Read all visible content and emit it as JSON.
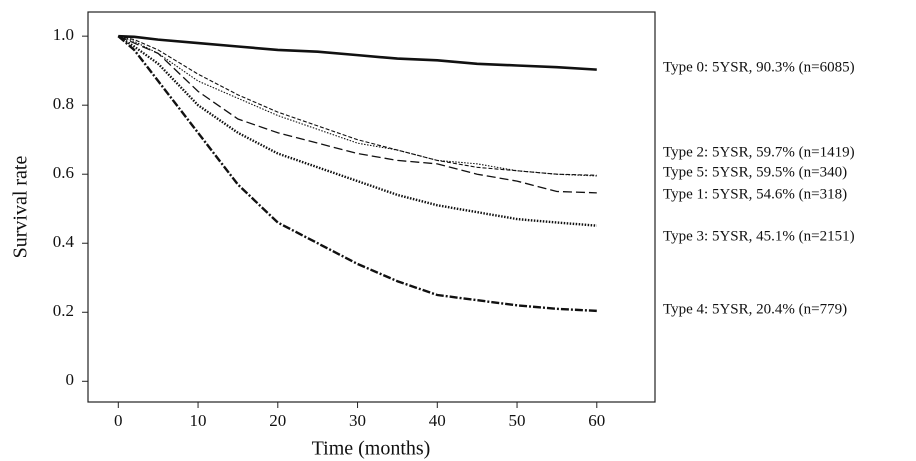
{
  "chart_data": {
    "type": "line",
    "x_label": "Time (months)",
    "y_label": "Survival rate",
    "xlim": [
      -3.8,
      67.3
    ],
    "ylim": [
      -0.06,
      1.07
    ],
    "xticks": [
      0,
      10,
      20,
      30,
      40,
      50,
      60
    ],
    "yticks": [
      0,
      0.2,
      0.4,
      0.6,
      0.8,
      {
        "value": 1,
        "label": "1.0"
      }
    ],
    "x": [
      0,
      2,
      5,
      10,
      15,
      20,
      25,
      30,
      35,
      40,
      45,
      50,
      55,
      60
    ],
    "series": [
      {
        "name": "Type 0: 5YSR, 90.3% (n=6085)",
        "color": "#111111",
        "values": [
          1,
          0.998,
          0.99,
          0.98,
          0.97,
          0.96,
          0.955,
          0.945,
          0.935,
          0.93,
          0.92,
          0.915,
          0.91,
          0.903
        ]
      },
      {
        "name": "Type 2: 5YSR, 59.7% (n=1419)",
        "color": "#111111",
        "values": [
          1,
          0.99,
          0.96,
          0.89,
          0.83,
          0.78,
          0.74,
          0.7,
          0.67,
          0.64,
          0.62,
          0.61,
          0.6,
          0.597
        ]
      },
      {
        "name": "Type 5: 5YSR, 59.5% (n=340)",
        "color": "#111111",
        "values": [
          1,
          0.985,
          0.95,
          0.87,
          0.82,
          0.77,
          0.73,
          0.69,
          0.67,
          0.64,
          0.63,
          0.61,
          0.6,
          0.595
        ]
      },
      {
        "name": "Type 1: 5YSR, 54.6% (n=318)",
        "color": "#111111",
        "values": [
          1,
          0.98,
          0.95,
          0.84,
          0.76,
          0.72,
          0.69,
          0.66,
          0.64,
          0.63,
          0.6,
          0.58,
          0.55,
          0.546
        ]
      },
      {
        "name": "Type 3: 5YSR, 45.1% (n=2151)",
        "color": "#111111",
        "values": [
          1,
          0.97,
          0.92,
          0.8,
          0.72,
          0.66,
          0.62,
          0.58,
          0.54,
          0.51,
          0.49,
          0.47,
          0.46,
          0.451
        ]
      },
      {
        "name": "Type 4: 5YSR, 20.4% (n=779)",
        "color": "#111111",
        "values": [
          1,
          0.96,
          0.87,
          0.72,
          0.57,
          0.46,
          0.4,
          0.34,
          0.29,
          0.25,
          0.235,
          0.22,
          0.21,
          0.204
        ]
      }
    ]
  }
}
